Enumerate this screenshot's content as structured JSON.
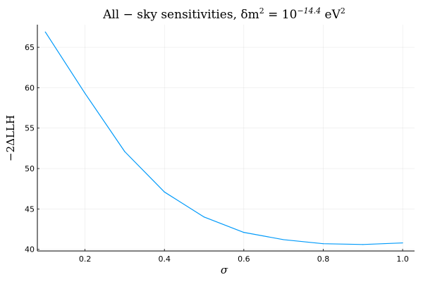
{
  "chart_data": {
    "type": "line",
    "title": "All − sky sensitivities,  δm² = 10⁻¹⁴·⁴ eV²",
    "title_parts": {
      "prefix": "All − sky sensitivities,  δm",
      "sup1": "2",
      "middle": " = 10",
      "sup2": "−14.4",
      "unit": " eV",
      "sup3": "2"
    },
    "xlabel": "σ",
    "ylabel": "−2ΔLLH",
    "xlim": [
      0.08,
      1.03
    ],
    "ylim": [
      39.8,
      67.8
    ],
    "x_ticks": [
      0.2,
      0.4,
      0.6,
      0.8,
      1.0
    ],
    "x_tick_labels": [
      "0.2",
      "0.4",
      "0.6",
      "0.8",
      "1.0"
    ],
    "y_ticks": [
      40,
      45,
      50,
      55,
      60,
      65
    ],
    "y_tick_labels": [
      "40",
      "45",
      "50",
      "55",
      "60",
      "65"
    ],
    "grid": true,
    "legend": "none",
    "series": [
      {
        "color": "#009AFA",
        "x": [
          0.1,
          0.2,
          0.3,
          0.4,
          0.5,
          0.6,
          0.7,
          0.8,
          0.9,
          1.0
        ],
        "values": [
          66.9,
          59.3,
          52.1,
          47.1,
          44.0,
          42.1,
          41.2,
          40.7,
          40.6,
          40.8
        ]
      }
    ]
  }
}
